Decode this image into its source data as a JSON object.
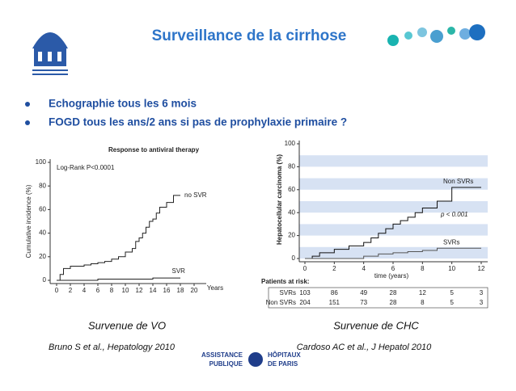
{
  "title": "Surveillance de la cirrhose",
  "bullets": [
    "Echographie tous les 6 mois",
    "FOGD tous les ans/2 ans si pas de prophylaxie primaire ?"
  ],
  "captions": [
    {
      "heading": "Survenue de VO",
      "reference": "Bruno S et al., Hepatology 2010"
    },
    {
      "heading": "Survenue de CHC",
      "reference": "Cardoso AC et al., J Hepatol 2010"
    }
  ],
  "logo": [
    "ASSISTANCE",
    "PUBLIQUE",
    "HÔPITAUX",
    "DE PARIS"
  ],
  "chart_data": [
    {
      "type": "line",
      "step": true,
      "title": "Response to antiviral therapy",
      "y_label": "Cumulative incidence (%)",
      "x_label": "Years",
      "annotation": "Log-Rank P<0.0001",
      "xlim": [
        0,
        20
      ],
      "xticks": [
        0,
        2,
        4,
        6,
        8,
        10,
        12,
        14,
        16,
        18,
        20
      ],
      "ylim": [
        0,
        100
      ],
      "yticks": [
        0,
        20,
        40,
        60,
        80,
        100
      ],
      "grid": false,
      "series": [
        {
          "name": "no SVR",
          "color": "#222222",
          "x": [
            0,
            0.5,
            1,
            2,
            3,
            4,
            5,
            6,
            7,
            8,
            9,
            10,
            11,
            11.5,
            12,
            12.5,
            13,
            13.5,
            14,
            14.5,
            15,
            16,
            17,
            18
          ],
          "values": [
            0,
            5,
            10,
            12,
            12,
            13,
            14,
            15,
            16,
            18,
            20,
            24,
            27,
            33,
            36,
            40,
            45,
            50,
            52,
            57,
            62,
            66,
            72,
            72
          ]
        },
        {
          "name": "SVR",
          "color": "#222222",
          "x": [
            0,
            2,
            6,
            10,
            14,
            17,
            18
          ],
          "values": [
            0,
            0,
            1,
            1,
            2,
            2,
            2
          ]
        }
      ]
    },
    {
      "type": "line",
      "step": true,
      "y_label": "Hepatocellular carcinoma (%)",
      "x_label": "time (years)",
      "annotation": "p < 0.001",
      "xlim": [
        0,
        12
      ],
      "xticks": [
        0,
        2,
        4,
        6,
        8,
        10,
        12
      ],
      "ylim": [
        0,
        100
      ],
      "yticks": [
        0,
        20,
        40,
        60,
        80,
        100
      ],
      "grid": true,
      "series": [
        {
          "name": "Non SVRs",
          "color": "#111111",
          "x": [
            0,
            0.5,
            1,
            2,
            3,
            4,
            4.5,
            5,
            5.5,
            6,
            6.5,
            7,
            7.5,
            8,
            9,
            10,
            12
          ],
          "values": [
            0,
            2,
            5,
            8,
            11,
            14,
            18,
            22,
            26,
            30,
            33,
            36,
            40,
            44,
            50,
            62,
            62
          ]
        },
        {
          "name": "SVRs",
          "color": "#555555",
          "x": [
            0,
            2,
            4,
            5,
            6,
            7,
            8,
            9,
            12
          ],
          "values": [
            0,
            0,
            2,
            4,
            5,
            6,
            7,
            9,
            9
          ]
        }
      ],
      "risk_table": {
        "title": "Patients at risk:",
        "rows": [
          {
            "name": "SVRs",
            "values": [
              103,
              86,
              49,
              28,
              12,
              5,
              3
            ]
          },
          {
            "name": "Non SVRs",
            "values": [
              204,
              151,
              73,
              28,
              8,
              5,
              3
            ]
          }
        ]
      }
    }
  ]
}
